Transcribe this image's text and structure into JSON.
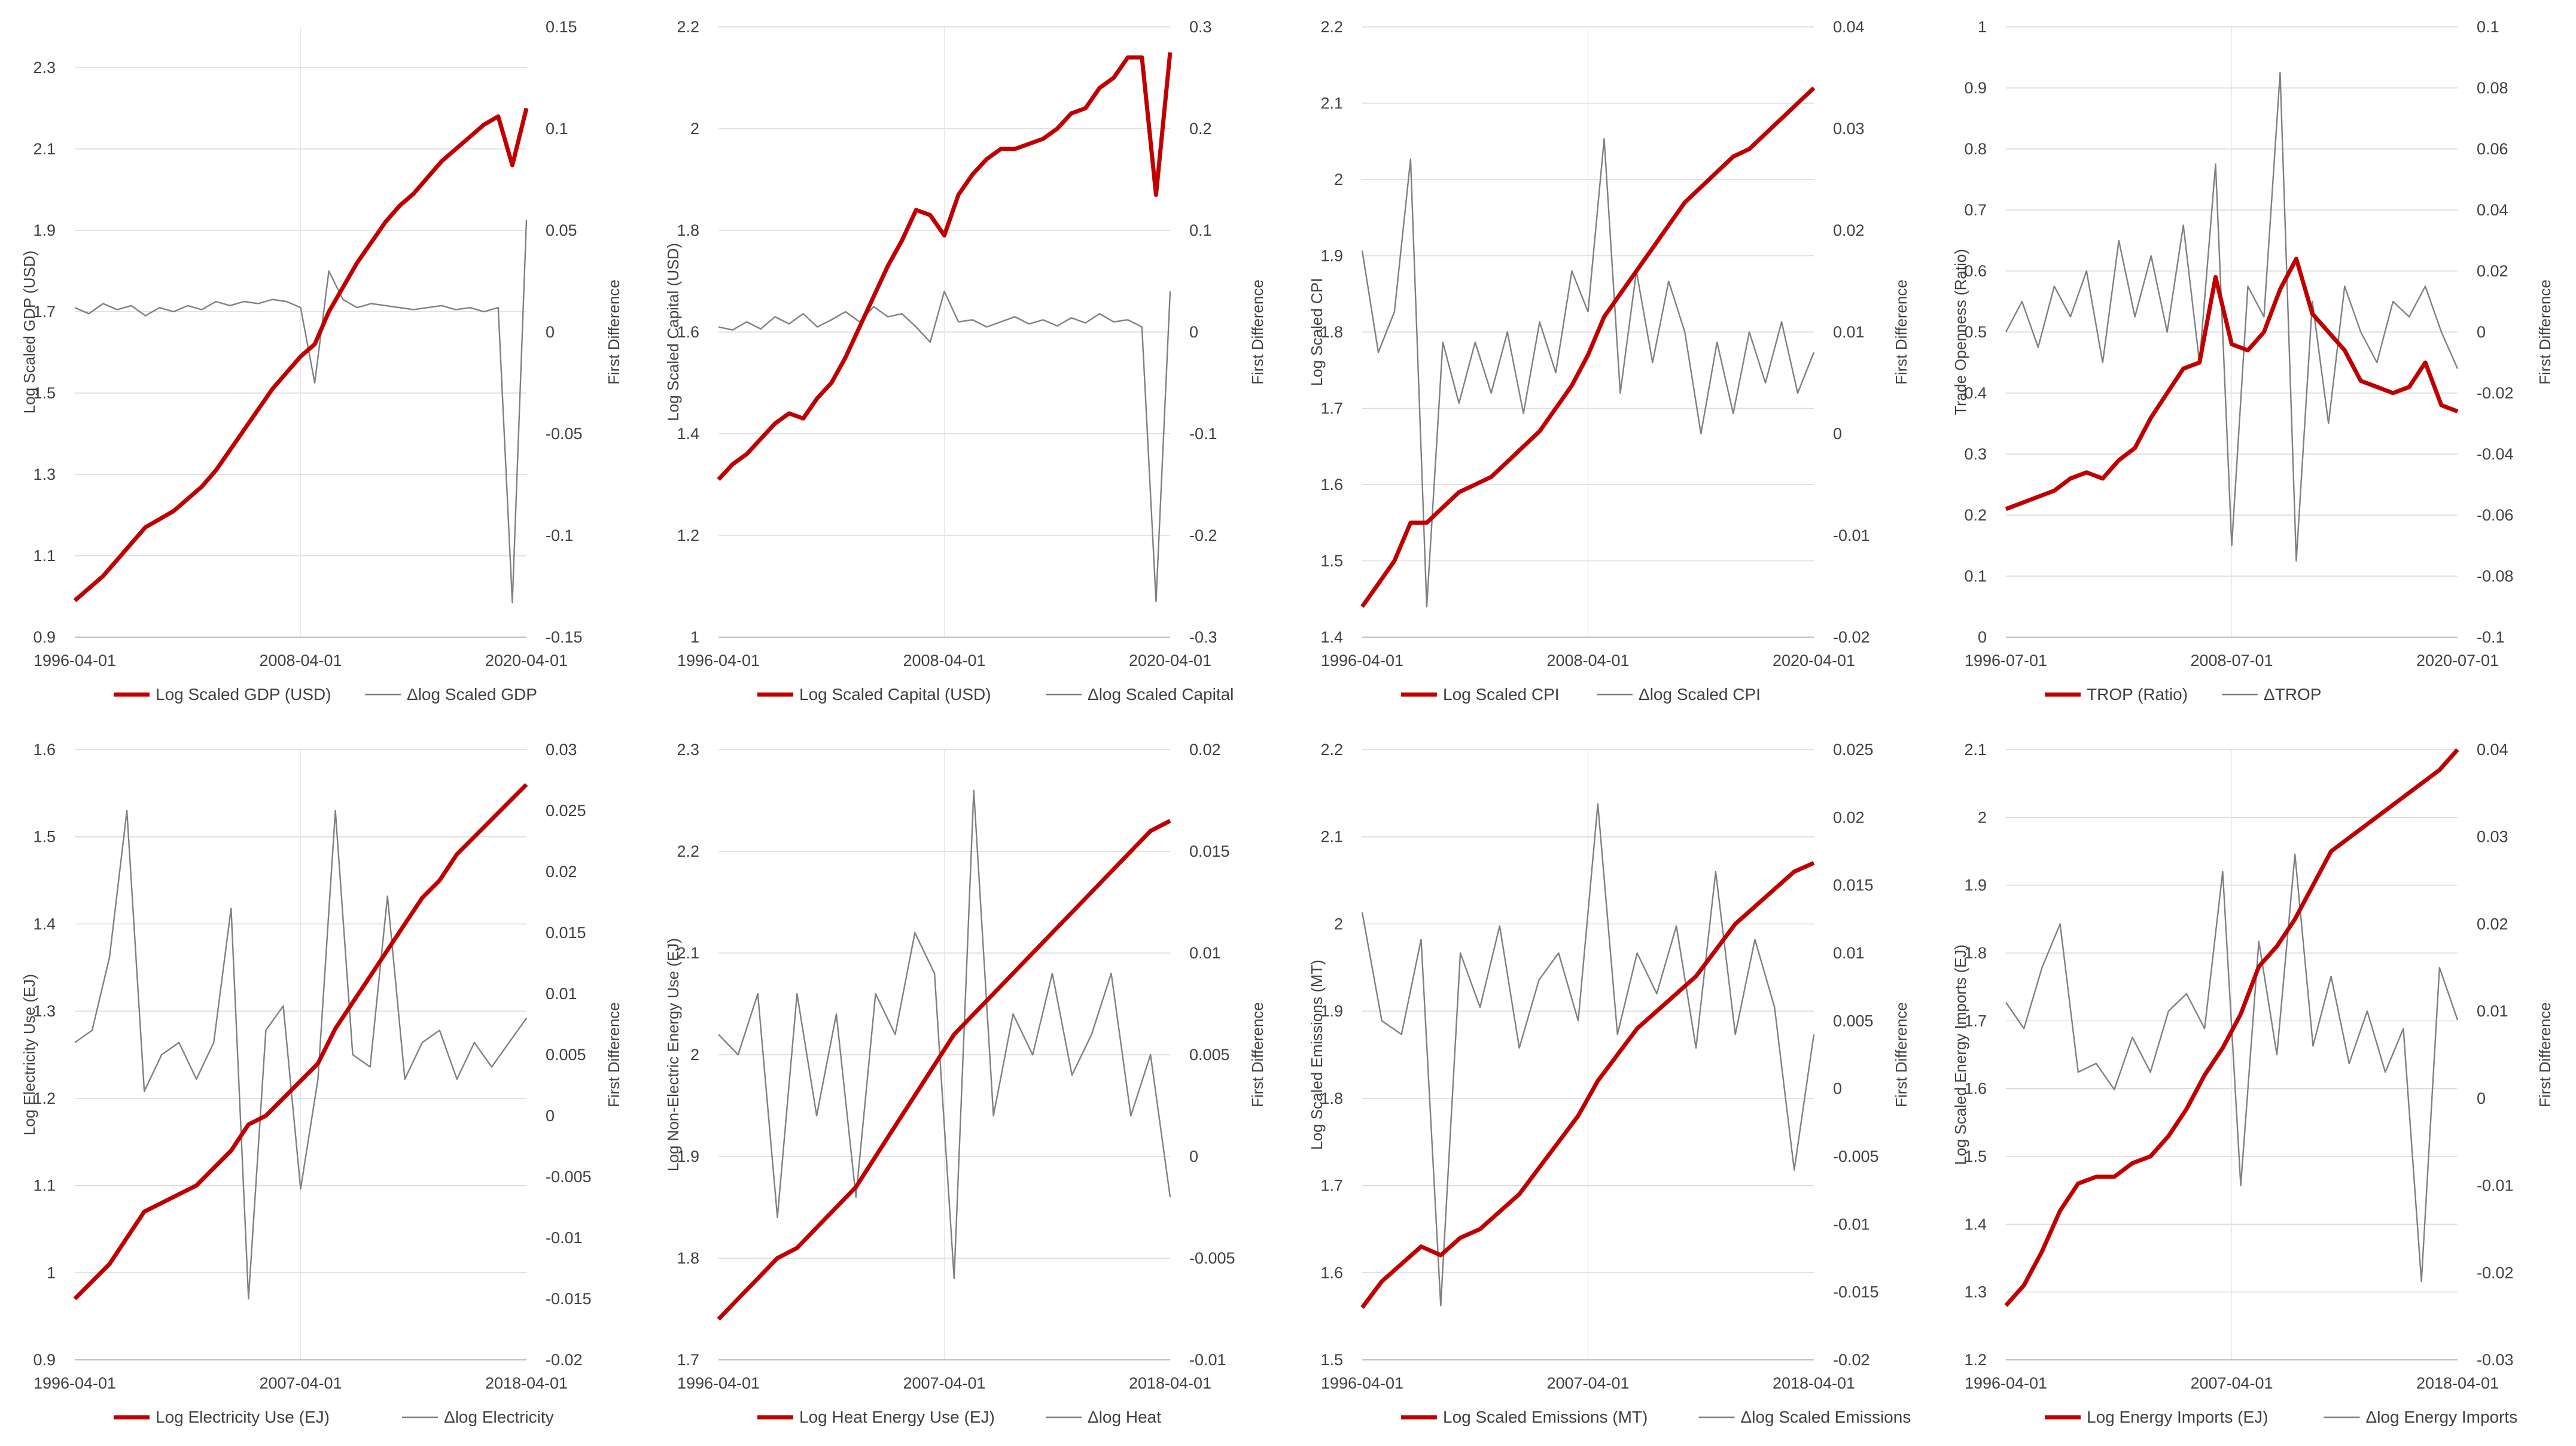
{
  "chart_data": [
    {
      "type": "line",
      "x_ticks": [
        "1996-04-01",
        "2008-04-01",
        "2020-04-01"
      ],
      "y_left": {
        "label": "Log Scaled GDP (USD)",
        "ticks": [
          "0.9",
          "1.1",
          "1.3",
          "1.5",
          "1.7",
          "1.9",
          "2.1",
          "2.3"
        ],
        "range": [
          0.9,
          2.4
        ]
      },
      "y_right": {
        "label": "First Difference",
        "ticks": [
          "-0.15",
          "-0.1",
          "-0.05",
          "0",
          "0.05",
          "0.1",
          "0.15"
        ],
        "range": [
          -0.15,
          0.15
        ]
      },
      "series": [
        {
          "name": "Log Scaled GDP (USD)",
          "axis": "left",
          "color": "#c00000",
          "values": [
            0.99,
            1.02,
            1.05,
            1.09,
            1.13,
            1.17,
            1.19,
            1.21,
            1.24,
            1.27,
            1.31,
            1.36,
            1.41,
            1.46,
            1.51,
            1.55,
            1.59,
            1.62,
            1.7,
            1.76,
            1.82,
            1.87,
            1.92,
            1.96,
            1.99,
            2.03,
            2.07,
            2.1,
            2.13,
            2.16,
            2.18,
            2.06,
            2.2
          ]
        },
        {
          "name": "Δlog Scaled GDP",
          "axis": "right",
          "color": "#808080",
          "values": [
            0.012,
            0.009,
            0.014,
            0.011,
            0.013,
            0.008,
            0.012,
            0.01,
            0.013,
            0.011,
            0.015,
            0.013,
            0.015,
            0.014,
            0.016,
            0.015,
            0.012,
            -0.025,
            0.03,
            0.016,
            0.012,
            0.014,
            0.013,
            0.012,
            0.011,
            0.012,
            0.013,
            0.011,
            0.012,
            0.01,
            0.012,
            -0.133,
            0.055
          ]
        }
      ],
      "legend": [
        "Log Scaled GDP (USD)",
        "Δlog Scaled GDP"
      ]
    },
    {
      "type": "line",
      "x_ticks": [
        "1996-04-01",
        "2008-04-01",
        "2020-04-01"
      ],
      "y_left": {
        "label": "Log Scaled Capital (USD)",
        "ticks": [
          "1",
          "1.2",
          "1.4",
          "1.6",
          "1.8",
          "2",
          "2.2"
        ],
        "range": [
          1.0,
          2.2
        ]
      },
      "y_right": {
        "label": "First Difference",
        "ticks": [
          "-0.3",
          "-0.2",
          "-0.1",
          "0",
          "0.1",
          "0.2",
          "0.3"
        ],
        "range": [
          -0.3,
          0.3
        ]
      },
      "series": [
        {
          "name": "Log Scaled Capital (USD)",
          "axis": "left",
          "color": "#c00000",
          "values": [
            1.31,
            1.34,
            1.36,
            1.39,
            1.42,
            1.44,
            1.43,
            1.47,
            1.5,
            1.55,
            1.61,
            1.67,
            1.73,
            1.78,
            1.84,
            1.83,
            1.79,
            1.87,
            1.91,
            1.94,
            1.96,
            1.96,
            1.97,
            1.98,
            2.0,
            2.03,
            2.04,
            2.08,
            2.1,
            2.14,
            2.14,
            1.87,
            2.15
          ]
        },
        {
          "name": "Δlog Scaled Capital",
          "axis": "right",
          "color": "#808080",
          "values": [
            0.005,
            0.002,
            0.01,
            0.003,
            0.015,
            0.008,
            0.018,
            0.005,
            0.012,
            0.02,
            0.01,
            0.025,
            0.015,
            0.018,
            0.005,
            -0.01,
            0.04,
            0.01,
            0.012,
            0.005,
            0.01,
            0.015,
            0.008,
            0.012,
            0.006,
            0.014,
            0.009,
            0.018,
            0.01,
            0.012,
            0.005,
            -0.265,
            0.04
          ]
        }
      ],
      "legend": [
        "Log Scaled Capital (USD)",
        "Δlog Scaled Capital"
      ]
    },
    {
      "type": "line",
      "x_ticks": [
        "1996-04-01",
        "2008-04-01",
        "2020-04-01"
      ],
      "y_left": {
        "label": "Log Scaled CPI",
        "ticks": [
          "1.4",
          "1.5",
          "1.6",
          "1.7",
          "1.8",
          "1.9",
          "2",
          "2.1",
          "2.2"
        ],
        "range": [
          1.4,
          2.2
        ]
      },
      "y_right": {
        "label": "First Difference",
        "ticks": [
          "-0.02",
          "-0.01",
          "0",
          "0.01",
          "0.02",
          "0.03",
          "0.04"
        ],
        "range": [
          -0.02,
          0.04
        ]
      },
      "series": [
        {
          "name": "Log Scaled CPI",
          "axis": "left",
          "color": "#c00000",
          "values": [
            1.44,
            1.47,
            1.5,
            1.55,
            1.55,
            1.57,
            1.59,
            1.6,
            1.61,
            1.63,
            1.65,
            1.67,
            1.7,
            1.73,
            1.77,
            1.82,
            1.85,
            1.88,
            1.91,
            1.94,
            1.97,
            1.99,
            2.01,
            2.03,
            2.04,
            2.06,
            2.08,
            2.1,
            2.12
          ]
        },
        {
          "name": "Δlog Scaled CPI",
          "axis": "right",
          "color": "#808080",
          "values": [
            0.018,
            0.008,
            0.012,
            0.027,
            -0.017,
            0.009,
            0.003,
            0.009,
            0.004,
            0.01,
            0.002,
            0.011,
            0.006,
            0.016,
            0.012,
            0.029,
            0.004,
            0.016,
            0.007,
            0.015,
            0.01,
            0.0,
            0.009,
            0.002,
            0.01,
            0.005,
            0.011,
            0.004,
            0.008
          ]
        }
      ],
      "legend": [
        "Log Scaled CPI",
        "Δlog Scaled CPI"
      ]
    },
    {
      "type": "line",
      "x_ticks": [
        "1996-07-01",
        "2008-07-01",
        "2020-07-01"
      ],
      "y_left": {
        "label": "Trade Openness (Ratio)",
        "ticks": [
          "0",
          "0.1",
          "0.2",
          "0.3",
          "0.4",
          "0.5",
          "0.6",
          "0.7",
          "0.8",
          "0.9",
          "1"
        ],
        "range": [
          0,
          1
        ]
      },
      "y_right": {
        "label": "First Difference",
        "ticks": [
          "-0.1",
          "-0.08",
          "-0.06",
          "-0.04",
          "-0.02",
          "0",
          "0.02",
          "0.04",
          "0.06",
          "0.08",
          "0.1"
        ],
        "range": [
          -0.1,
          0.1
        ]
      },
      "series": [
        {
          "name": "TROP (Ratio)",
          "axis": "left",
          "color": "#c00000",
          "values": [
            0.21,
            0.22,
            0.23,
            0.24,
            0.26,
            0.27,
            0.26,
            0.29,
            0.31,
            0.36,
            0.4,
            0.44,
            0.45,
            0.59,
            0.48,
            0.47,
            0.5,
            0.57,
            0.62,
            0.53,
            0.5,
            0.47,
            0.42,
            0.41,
            0.4,
            0.41,
            0.45,
            0.38,
            0.37
          ]
        },
        {
          "name": "ΔTROP",
          "axis": "right",
          "color": "#808080",
          "values": [
            0.0,
            0.01,
            -0.005,
            0.015,
            0.005,
            0.02,
            -0.01,
            0.03,
            0.005,
            0.025,
            0.0,
            0.035,
            -0.01,
            0.055,
            -0.07,
            0.015,
            0.005,
            0.085,
            -0.075,
            0.01,
            -0.03,
            0.015,
            0.0,
            -0.01,
            0.01,
            0.005,
            0.015,
            0.0,
            -0.012
          ]
        }
      ],
      "legend": [
        "TROP (Ratio)",
        "ΔTROP"
      ]
    },
    {
      "type": "line",
      "x_ticks": [
        "1996-04-01",
        "2007-04-01",
        "2018-04-01"
      ],
      "y_left": {
        "label": "Log Electricity Use (EJ)",
        "ticks": [
          "0.9",
          "1",
          "1.1",
          "1.2",
          "1.3",
          "1.4",
          "1.5",
          "1.6"
        ],
        "range": [
          0.9,
          1.6
        ]
      },
      "y_right": {
        "label": "First Difference",
        "ticks": [
          "-0.02",
          "-0.015",
          "-0.01",
          "-0.005",
          "0",
          "0.005",
          "0.01",
          "0.015",
          "0.02",
          "0.025",
          "0.03"
        ],
        "range": [
          -0.02,
          0.03
        ]
      },
      "series": [
        {
          "name": "Log Electricity Use (EJ)",
          "axis": "left",
          "color": "#c00000",
          "values": [
            0.97,
            0.99,
            1.01,
            1.04,
            1.07,
            1.08,
            1.09,
            1.1,
            1.12,
            1.14,
            1.17,
            1.18,
            1.2,
            1.22,
            1.24,
            1.28,
            1.31,
            1.34,
            1.37,
            1.4,
            1.43,
            1.45,
            1.48,
            1.5,
            1.52,
            1.54,
            1.56
          ]
        },
        {
          "name": "Δlog Electricity",
          "axis": "right",
          "color": "#808080",
          "values": [
            0.006,
            0.007,
            0.013,
            0.025,
            0.002,
            0.005,
            0.006,
            0.003,
            0.006,
            0.017,
            -0.015,
            0.007,
            0.009,
            -0.006,
            0.003,
            0.025,
            0.005,
            0.004,
            0.018,
            0.003,
            0.006,
            0.007,
            0.003,
            0.006,
            0.004,
            0.006,
            0.008
          ]
        }
      ],
      "legend": [
        "Log Electricity Use (EJ)",
        "Δlog Electricity"
      ]
    },
    {
      "type": "line",
      "x_ticks": [
        "1996-04-01",
        "2007-04-01",
        "2018-04-01"
      ],
      "y_left": {
        "label": "Log Non-Electric Energy Use (EJ)",
        "ticks": [
          "1.7",
          "1.8",
          "1.9",
          "2",
          "2.1",
          "2.2",
          "2.3"
        ],
        "range": [
          1.7,
          2.3
        ]
      },
      "y_right": {
        "label": "First Difference",
        "ticks": [
          "-0.01",
          "-0.005",
          "0",
          "0.005",
          "0.01",
          "0.015",
          "0.02"
        ],
        "range": [
          -0.01,
          0.02
        ]
      },
      "series": [
        {
          "name": "Log Heat Energy Use (EJ)",
          "axis": "left",
          "color": "#c00000",
          "values": [
            1.74,
            1.76,
            1.78,
            1.8,
            1.81,
            1.83,
            1.85,
            1.87,
            1.9,
            1.93,
            1.96,
            1.99,
            2.02,
            2.04,
            2.06,
            2.08,
            2.1,
            2.12,
            2.14,
            2.16,
            2.18,
            2.2,
            2.22,
            2.23
          ]
        },
        {
          "name": "Δlog Heat",
          "axis": "right",
          "color": "#808080",
          "values": [
            0.006,
            0.005,
            0.008,
            -0.003,
            0.008,
            0.002,
            0.007,
            -0.002,
            0.008,
            0.006,
            0.011,
            0.009,
            -0.006,
            0.018,
            0.002,
            0.007,
            0.005,
            0.009,
            0.004,
            0.006,
            0.009,
            0.002,
            0.005,
            -0.002
          ]
        }
      ],
      "legend": [
        "Log Heat Energy Use (EJ)",
        "Δlog Heat"
      ]
    },
    {
      "type": "line",
      "x_ticks": [
        "1996-04-01",
        "2007-04-01",
        "2018-04-01"
      ],
      "y_left": {
        "label": "Log Scaled Emissions (MT)",
        "ticks": [
          "1.5",
          "1.6",
          "1.7",
          "1.8",
          "1.9",
          "2",
          "2.1",
          "2.2"
        ],
        "range": [
          1.5,
          2.2
        ]
      },
      "y_right": {
        "label": "First Difference",
        "ticks": [
          "-0.02",
          "-0.015",
          "-0.01",
          "-0.005",
          "0",
          "0.005",
          "0.01",
          "0.015",
          "0.02",
          "0.025"
        ],
        "range": [
          -0.02,
          0.025
        ]
      },
      "series": [
        {
          "name": "Log Scaled Emissions (MT)",
          "axis": "left",
          "color": "#c00000",
          "values": [
            1.56,
            1.59,
            1.61,
            1.63,
            1.62,
            1.64,
            1.65,
            1.67,
            1.69,
            1.72,
            1.75,
            1.78,
            1.82,
            1.85,
            1.88,
            1.9,
            1.92,
            1.94,
            1.97,
            2.0,
            2.02,
            2.04,
            2.06,
            2.07
          ]
        },
        {
          "name": "Δlog Scaled Emissions",
          "axis": "right",
          "color": "#808080",
          "values": [
            0.013,
            0.005,
            0.004,
            0.011,
            -0.016,
            0.01,
            0.006,
            0.012,
            0.003,
            0.008,
            0.01,
            0.005,
            0.021,
            0.004,
            0.01,
            0.007,
            0.012,
            0.003,
            0.016,
            0.004,
            0.011,
            0.006,
            -0.006,
            0.004
          ]
        }
      ],
      "legend": [
        "Log Scaled Emissions (MT)",
        "Δlog Scaled Emissions"
      ]
    },
    {
      "type": "line",
      "x_ticks": [
        "1996-04-01",
        "2007-04-01",
        "2018-04-01"
      ],
      "y_left": {
        "label": "Log Scaled Energy Imports (EJ)",
        "ticks": [
          "1.2",
          "1.3",
          "1.4",
          "1.5",
          "1.6",
          "1.7",
          "1.8",
          "1.9",
          "2",
          "2.1"
        ],
        "range": [
          1.2,
          2.1
        ]
      },
      "y_right": {
        "label": "First Difference",
        "ticks": [
          "-0.03",
          "-0.02",
          "-0.01",
          "0",
          "0.01",
          "0.02",
          "0.03",
          "0.04"
        ],
        "range": [
          -0.03,
          0.04
        ]
      },
      "series": [
        {
          "name": "Log Energy Imports (EJ)",
          "axis": "left",
          "color": "#c00000",
          "values": [
            1.28,
            1.31,
            1.36,
            1.42,
            1.46,
            1.47,
            1.47,
            1.49,
            1.5,
            1.53,
            1.57,
            1.62,
            1.66,
            1.71,
            1.78,
            1.81,
            1.85,
            1.9,
            1.95,
            1.97,
            1.99,
            2.01,
            2.03,
            2.05,
            2.07,
            2.1
          ]
        },
        {
          "name": "Δlog Energy Imports",
          "axis": "right",
          "color": "#808080",
          "values": [
            0.011,
            0.008,
            0.015,
            0.02,
            0.003,
            0.004,
            0.001,
            0.007,
            0.003,
            0.01,
            0.012,
            0.008,
            0.026,
            -0.01,
            0.018,
            0.005,
            0.028,
            0.006,
            0.014,
            0.004,
            0.01,
            0.003,
            0.008,
            -0.021,
            0.015,
            0.009
          ]
        }
      ],
      "legend": [
        "Log Energy Imports (EJ)",
        "Δlog Energy Imports"
      ]
    }
  ]
}
